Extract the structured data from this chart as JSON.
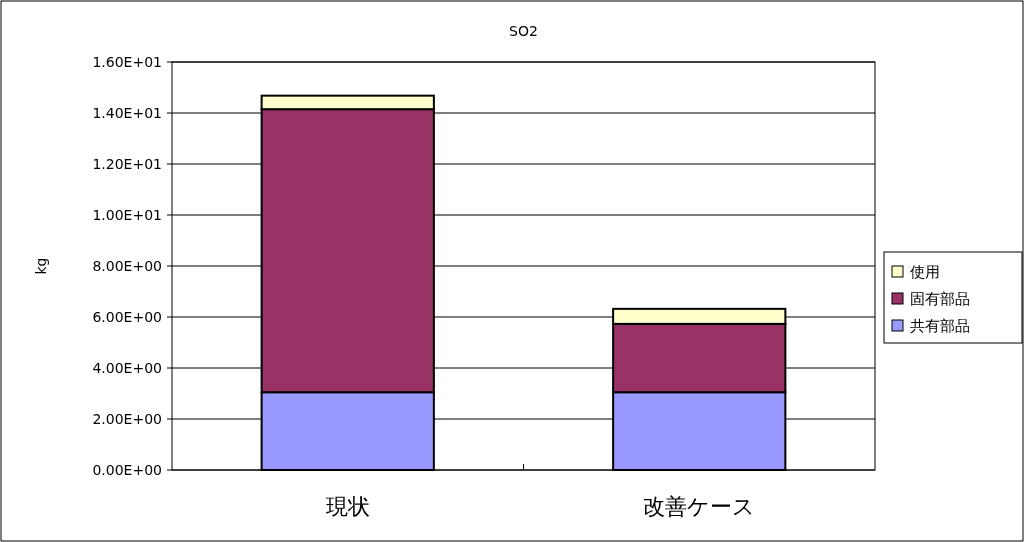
{
  "chart_data": {
    "type": "bar",
    "title": "SO2",
    "ylabel": "kg",
    "categories": [
      "現状",
      "改善ケース"
    ],
    "stacked": true,
    "grid": "y",
    "legend": "right",
    "ylim": [
      0,
      16
    ],
    "yticks": [
      {
        "value": 0,
        "label": "0.00E+00"
      },
      {
        "value": 2,
        "label": "2.00E+00"
      },
      {
        "value": 4,
        "label": "4.00E+00"
      },
      {
        "value": 6,
        "label": "6.00E+00"
      },
      {
        "value": 8,
        "label": "8.00E+00"
      },
      {
        "value": 10,
        "label": "1.00E+01"
      },
      {
        "value": 12,
        "label": "1.20E+01"
      },
      {
        "value": 14,
        "label": "1.40E+01"
      },
      {
        "value": 16,
        "label": "1.60E+01"
      }
    ],
    "series": [
      {
        "name": "共有部品",
        "color": "#9999ff",
        "values": [
          3.05,
          3.05
        ]
      },
      {
        "name": "固有部品",
        "color": "#993366",
        "values": [
          11.1,
          2.68
        ]
      },
      {
        "name": "使用",
        "color": "#ffffcc",
        "values": [
          0.53,
          0.59
        ]
      }
    ]
  }
}
